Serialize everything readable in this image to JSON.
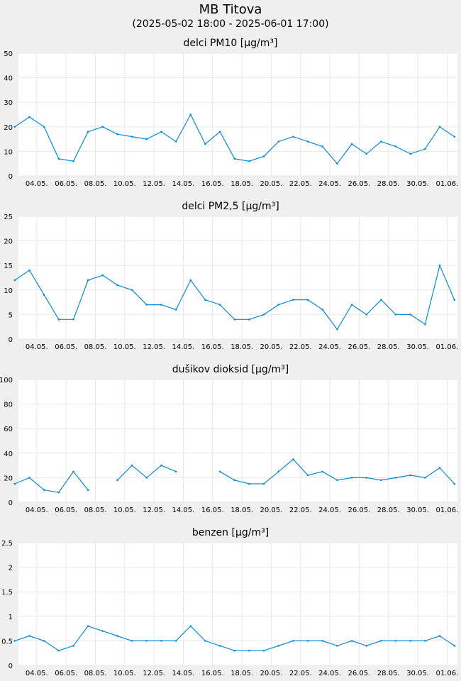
{
  "header": {
    "title": "MB Titova",
    "subtitle": "(2025-05-02 18:00 - 2025-06-01 17:00)"
  },
  "colors": {
    "line": "#0a8ad0",
    "plot_bg": "#ffffff",
    "grid": "#e8e8e8",
    "page_bg": "#f0f0f0"
  },
  "chart_data": [
    {
      "type": "line",
      "title": "delci PM10 [µg/m³]",
      "ylim": [
        0,
        50
      ],
      "yticks": [
        "0",
        "10",
        "20",
        "30",
        "40",
        "50"
      ],
      "xticklabels": [
        "04.05.",
        "06.05.",
        "08.05.",
        "10.05.",
        "12.05.",
        "14.05.",
        "16.05.",
        "18.05.",
        "20.05.",
        "22.05.",
        "24.05.",
        "26.05.",
        "28.05.",
        "30.05.",
        "01.06."
      ],
      "x": [
        "2025-05-02",
        "2025-05-03",
        "2025-05-04",
        "2025-05-05",
        "2025-05-06",
        "2025-05-07",
        "2025-05-08",
        "2025-05-09",
        "2025-05-10",
        "2025-05-11",
        "2025-05-12",
        "2025-05-13",
        "2025-05-14",
        "2025-05-15",
        "2025-05-16",
        "2025-05-17",
        "2025-05-18",
        "2025-05-19",
        "2025-05-20",
        "2025-05-21",
        "2025-05-22",
        "2025-05-23",
        "2025-05-24",
        "2025-05-25",
        "2025-05-26",
        "2025-05-27",
        "2025-05-28",
        "2025-05-29",
        "2025-05-30",
        "2025-05-31",
        "2025-06-01"
      ],
      "series": [
        {
          "values": [
            20,
            24,
            20,
            7,
            6,
            18,
            20,
            17,
            16,
            15,
            18,
            14,
            25,
            13,
            18,
            7,
            6,
            8,
            14,
            16,
            14,
            12,
            5,
            13,
            9,
            14,
            12,
            9,
            11,
            20,
            16
          ]
        }
      ]
    },
    {
      "type": "line",
      "title": "delci PM2,5 [µg/m³]",
      "ylim": [
        0,
        25
      ],
      "yticks": [
        "0",
        "5",
        "10",
        "15",
        "20",
        "25"
      ],
      "xticklabels": [
        "04.05.",
        "06.05.",
        "08.05.",
        "10.05.",
        "12.05.",
        "14.05.",
        "16.05.",
        "18.05.",
        "20.05.",
        "22.05.",
        "24.05.",
        "26.05.",
        "28.05.",
        "30.05.",
        "01.06."
      ],
      "x": [
        "2025-05-02",
        "2025-05-03",
        "2025-05-04",
        "2025-05-05",
        "2025-05-06",
        "2025-05-07",
        "2025-05-08",
        "2025-05-09",
        "2025-05-10",
        "2025-05-11",
        "2025-05-12",
        "2025-05-13",
        "2025-05-14",
        "2025-05-15",
        "2025-05-16",
        "2025-05-17",
        "2025-05-18",
        "2025-05-19",
        "2025-05-20",
        "2025-05-21",
        "2025-05-22",
        "2025-05-23",
        "2025-05-24",
        "2025-05-25",
        "2025-05-26",
        "2025-05-27",
        "2025-05-28",
        "2025-05-29",
        "2025-05-30",
        "2025-05-31",
        "2025-06-01"
      ],
      "series": [
        {
          "values": [
            12,
            14,
            9,
            4,
            4,
            12,
            13,
            11,
            10,
            7,
            7,
            6,
            12,
            8,
            7,
            4,
            4,
            5,
            7,
            8,
            8,
            6,
            2,
            7,
            5,
            8,
            5,
            5,
            3,
            15,
            8
          ]
        }
      ]
    },
    {
      "type": "line",
      "title": "dušikov dioksid [µg/m³]",
      "ylim": [
        0,
        100
      ],
      "yticks": [
        "0",
        "20",
        "40",
        "60",
        "80",
        "100"
      ],
      "xticklabels": [
        "04.05.",
        "06.05.",
        "08.05.",
        "10.05.",
        "12.05.",
        "14.05.",
        "16.05.",
        "18.05.",
        "20.05.",
        "22.05.",
        "24.05.",
        "26.05.",
        "28.05.",
        "30.05.",
        "01.06."
      ],
      "x": [
        "2025-05-02",
        "2025-05-03",
        "2025-05-04",
        "2025-05-05",
        "2025-05-06",
        "2025-05-07",
        "2025-05-08",
        "2025-05-09",
        "2025-05-10",
        "2025-05-11",
        "2025-05-12",
        "2025-05-13",
        "2025-05-14",
        "2025-05-15",
        "2025-05-16",
        "2025-05-17",
        "2025-05-18",
        "2025-05-19",
        "2025-05-20",
        "2025-05-21",
        "2025-05-22",
        "2025-05-23",
        "2025-05-24",
        "2025-05-25",
        "2025-05-26",
        "2025-05-27",
        "2025-05-28",
        "2025-05-29",
        "2025-05-30",
        "2025-05-31",
        "2025-06-01"
      ],
      "series": [
        {
          "values": [
            15,
            20,
            10,
            8,
            25,
            10,
            null,
            18,
            30,
            20,
            30,
            25,
            null,
            null,
            25,
            18,
            15,
            15,
            25,
            35,
            22,
            25,
            18,
            20,
            20,
            18,
            20,
            22,
            20,
            28,
            15
          ]
        }
      ]
    },
    {
      "type": "line",
      "title": "benzen [µg/m³]",
      "ylim": [
        0,
        2.5
      ],
      "yticks": [
        "0",
        "0.5",
        "1",
        "1.5",
        "2",
        "2.5"
      ],
      "xticklabels": [
        "04.05.",
        "06.05.",
        "08.05.",
        "10.05.",
        "12.05.",
        "14.05.",
        "16.05.",
        "18.05.",
        "20.05.",
        "22.05.",
        "24.05.",
        "26.05.",
        "28.05.",
        "30.05.",
        "01.06."
      ],
      "x": [
        "2025-05-02",
        "2025-05-03",
        "2025-05-04",
        "2025-05-05",
        "2025-05-06",
        "2025-05-07",
        "2025-05-08",
        "2025-05-09",
        "2025-05-10",
        "2025-05-11",
        "2025-05-12",
        "2025-05-13",
        "2025-05-14",
        "2025-05-15",
        "2025-05-16",
        "2025-05-17",
        "2025-05-18",
        "2025-05-19",
        "2025-05-20",
        "2025-05-21",
        "2025-05-22",
        "2025-05-23",
        "2025-05-24",
        "2025-05-25",
        "2025-05-26",
        "2025-05-27",
        "2025-05-28",
        "2025-05-29",
        "2025-05-30",
        "2025-05-31",
        "2025-06-01"
      ],
      "series": [
        {
          "values": [
            0.5,
            0.6,
            0.5,
            0.3,
            0.4,
            0.8,
            0.7,
            0.6,
            0.5,
            0.5,
            0.5,
            0.5,
            0.8,
            0.5,
            0.4,
            0.3,
            0.3,
            0.3,
            0.4,
            0.5,
            0.5,
            0.5,
            0.4,
            0.5,
            0.4,
            0.5,
            0.5,
            0.5,
            0.5,
            0.6,
            0.4
          ]
        }
      ]
    }
  ]
}
